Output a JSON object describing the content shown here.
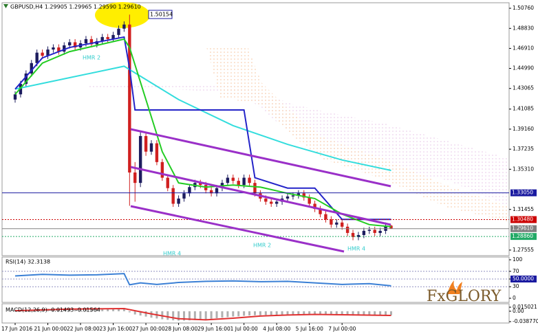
{
  "chart_data": [
    {
      "type": "candlestick",
      "title": "GBPUSD,H4  1.29905 1.29965 1.29590 1.29610",
      "categories": [
        "17 Jun 2016",
        null,
        null,
        null,
        null,
        null,
        "21 Jun 00:00",
        null,
        null,
        null,
        null,
        null,
        "22 Jun 08:00",
        null,
        null,
        null,
        null,
        null,
        "23 Jun 16:00",
        null,
        null,
        null,
        null,
        null,
        "27 Jun 00:00",
        null,
        null,
        null,
        null,
        null,
        "28 Jun 08:00",
        null,
        null,
        null,
        null,
        null,
        "29 Jun 16:00",
        null,
        null,
        null,
        null,
        null,
        "1 Jul 00:00",
        null,
        null,
        null,
        null,
        null,
        "4 Jul 08:00",
        null,
        null,
        null,
        null,
        null,
        "5 Jul 16:00",
        null,
        null,
        null,
        null,
        null,
        "7 Jul 00:00",
        null,
        null,
        null,
        null,
        null,
        null,
        null,
        null,
        null
      ],
      "open": [
        1.42,
        1.425,
        1.435,
        1.445,
        1.455,
        1.465,
        1.462,
        1.468,
        1.47,
        1.466,
        1.472,
        1.475,
        1.47,
        1.474,
        1.478,
        1.473,
        1.476,
        1.48,
        1.478,
        1.482,
        1.488,
        1.492,
        1.35,
        1.34,
        1.385,
        1.37,
        1.378,
        1.36,
        1.345,
        1.335,
        1.32,
        1.325,
        1.33,
        1.336,
        1.34,
        1.338,
        1.333,
        1.33,
        1.335,
        1.34,
        1.345,
        1.342,
        1.338,
        1.345,
        1.34,
        1.33,
        1.325,
        1.322,
        1.32,
        1.322,
        1.325,
        1.327,
        1.328,
        1.33,
        1.326,
        1.32,
        1.315,
        1.31,
        1.305,
        1.3,
        1.302,
        1.298,
        1.292,
        1.288,
        1.29,
        1.294,
        1.295,
        1.292,
        1.294,
        1.29905
      ],
      "high": [
        1.428,
        1.438,
        1.448,
        1.458,
        1.468,
        1.468,
        1.471,
        1.473,
        1.473,
        1.475,
        1.478,
        1.478,
        1.477,
        1.481,
        1.481,
        1.479,
        1.483,
        1.483,
        1.485,
        1.491,
        1.495,
        1.50154,
        1.36,
        1.39,
        1.388,
        1.381,
        1.381,
        1.363,
        1.348,
        1.338,
        1.328,
        1.333,
        1.339,
        1.343,
        1.343,
        1.341,
        1.336,
        1.338,
        1.343,
        1.348,
        1.348,
        1.345,
        1.348,
        1.348,
        1.343,
        1.333,
        1.328,
        1.325,
        1.325,
        1.328,
        1.33,
        1.331,
        1.333,
        1.333,
        1.329,
        1.323,
        1.318,
        1.313,
        1.308,
        1.305,
        1.305,
        1.301,
        1.295,
        1.293,
        1.297,
        1.298,
        1.298,
        1.297,
        1.302,
        1.29965
      ],
      "low": [
        1.417,
        1.422,
        1.432,
        1.442,
        1.452,
        1.459,
        1.459,
        1.465,
        1.463,
        1.463,
        1.469,
        1.467,
        1.467,
        1.471,
        1.47,
        1.47,
        1.473,
        1.475,
        1.475,
        1.479,
        1.485,
        1.318,
        1.322,
        1.336,
        1.366,
        1.367,
        1.357,
        1.342,
        1.332,
        1.317,
        1.317,
        1.322,
        1.327,
        1.333,
        1.335,
        1.33,
        1.327,
        1.327,
        1.332,
        1.337,
        1.339,
        1.335,
        1.335,
        1.337,
        1.327,
        1.322,
        1.319,
        1.317,
        1.317,
        1.319,
        1.322,
        1.324,
        1.325,
        1.323,
        1.317,
        1.312,
        1.307,
        1.302,
        1.297,
        1.297,
        1.295,
        1.289,
        1.285,
        1.285,
        1.287,
        1.291,
        1.289,
        1.289,
        1.291,
        1.2959
      ],
      "close": [
        1.425,
        1.435,
        1.445,
        1.455,
        1.465,
        1.462,
        1.468,
        1.47,
        1.466,
        1.472,
        1.475,
        1.47,
        1.474,
        1.478,
        1.473,
        1.476,
        1.48,
        1.478,
        1.482,
        1.488,
        1.492,
        1.35,
        1.34,
        1.385,
        1.37,
        1.378,
        1.36,
        1.345,
        1.335,
        1.32,
        1.325,
        1.33,
        1.336,
        1.34,
        1.338,
        1.333,
        1.33,
        1.335,
        1.34,
        1.345,
        1.342,
        1.338,
        1.345,
        1.34,
        1.33,
        1.325,
        1.322,
        1.32,
        1.322,
        1.325,
        1.327,
        1.328,
        1.33,
        1.326,
        1.32,
        1.315,
        1.31,
        1.305,
        1.3,
        1.302,
        1.298,
        1.292,
        1.288,
        1.29,
        1.294,
        1.295,
        1.292,
        1.294,
        1.299,
        1.2961
      ],
      "up_color": "#1c1c5e",
      "down_color": "#d02020",
      "series": [
        {
          "color": "#33dddd",
          "x": [
            0,
            10,
            20,
            30,
            40,
            50,
            60,
            69
          ],
          "values": [
            1.43,
            1.441,
            1.452,
            1.42,
            1.395,
            1.377,
            1.362,
            1.352
          ]
        },
        {
          "color": "#2323c8",
          "x": [
            0,
            5,
            10,
            20,
            21,
            22,
            42,
            44,
            50,
            55,
            60,
            69
          ],
          "values": [
            1.43,
            1.46,
            1.47,
            1.48,
            1.45,
            1.41,
            1.41,
            1.345,
            1.335,
            1.335,
            1.305,
            1.305
          ]
        },
        {
          "color": "#22cc22",
          "x": [
            0,
            5,
            10,
            15,
            20,
            21,
            24,
            27,
            30,
            35,
            40,
            45,
            50,
            55,
            60,
            65,
            69
          ],
          "values": [
            1.425,
            1.455,
            1.466,
            1.472,
            1.478,
            1.47,
            1.42,
            1.37,
            1.34,
            1.336,
            1.338,
            1.336,
            1.33,
            1.325,
            1.31,
            1.3,
            1.298
          ]
        }
      ],
      "hlines": [
        {
          "value": 1.3305,
          "label": "1.33050",
          "color": "#1a1aa0",
          "style": "solid"
        },
        {
          "value": 1.3048,
          "label": "1.30480",
          "color": "#cc0000",
          "style": "dotted"
        },
        {
          "value": 1.2961,
          "label": "1.29610",
          "color": "#808080",
          "style": "solid"
        },
        {
          "value": 1.2886,
          "label": "1.28860",
          "color": "#22aa66",
          "style": "dotted"
        }
      ],
      "annotations": [
        "1.50154",
        "HMR 2",
        "HMR 4",
        "HMR 2",
        "HMR 4"
      ],
      "ylim": [
        1.2702,
        1.5129
      ],
      "yticks": [
        {
          "value": 1.5076,
          "label": "1.50760"
        },
        {
          "value": 1.4883,
          "label": "1.48830"
        },
        {
          "value": 1.4691,
          "label": "1.46910"
        },
        {
          "value": 1.4499,
          "label": "1.44990"
        },
        {
          "value": 1.43065,
          "label": "1.43065"
        },
        {
          "value": 1.41085,
          "label": "1.41085"
        },
        {
          "value": 1.3916,
          "label": "1.39160"
        },
        {
          "value": 1.37235,
          "label": "1.37235"
        },
        {
          "value": 1.3531,
          "label": "1.35310"
        },
        {
          "value": 1.31455,
          "label": "1.31455"
        },
        {
          "value": 1.27555,
          "label": "1.27555"
        }
      ]
    },
    {
      "type": "line",
      "title": "RSI(14) 32.3138",
      "series": [
        {
          "color": "#3a7fd5",
          "x": [
            0,
            5,
            10,
            15,
            20,
            21,
            23,
            26,
            30,
            35,
            40,
            45,
            50,
            55,
            60,
            65,
            69
          ],
          "values": [
            58,
            62,
            60,
            61,
            64,
            35,
            40,
            36,
            41,
            44,
            45,
            43,
            44,
            40,
            36,
            38,
            32.3138
          ]
        }
      ],
      "ylim": [
        0,
        100
      ],
      "yticks": [
        100,
        70,
        {
          "value": 50,
          "label": "50.0000"
        },
        30,
        0
      ]
    },
    {
      "type": "bar",
      "title": "MACD(12,26,9) -0.01493 -0.01564",
      "color": "#b0b0b0",
      "values": [
        0.002,
        0.003,
        0.004,
        0.005,
        0.007,
        0.008,
        0.009,
        0.009,
        0.009,
        0.01,
        0.01,
        0.01,
        0.01,
        0.01,
        0.01,
        0.01,
        0.01,
        0.01,
        0.011,
        0.011,
        0.012,
        -0.004,
        -0.012,
        -0.016,
        -0.02,
        -0.024,
        -0.027,
        -0.03,
        -0.032,
        -0.034,
        -0.035,
        -0.035,
        -0.034,
        -0.033,
        -0.031,
        -0.03,
        -0.028,
        -0.026,
        -0.024,
        -0.022,
        -0.02,
        -0.019,
        -0.017,
        -0.016,
        -0.015,
        -0.015,
        -0.014,
        -0.014,
        -0.013,
        -0.013,
        -0.012,
        -0.012,
        -0.012,
        -0.012,
        -0.012,
        -0.013,
        -0.013,
        -0.014,
        -0.014,
        -0.015,
        -0.015,
        -0.015,
        -0.016,
        -0.016,
        -0.016,
        -0.016,
        -0.015,
        -0.015,
        -0.015,
        -0.01493
      ],
      "series": [
        {
          "color": "#e03030",
          "x": [
            0,
            10,
            20,
            25,
            30,
            35,
            40,
            45,
            50,
            55,
            60,
            69
          ],
          "values": [
            0.002,
            0.008,
            0.01,
            -0.01,
            -0.028,
            -0.032,
            -0.026,
            -0.018,
            -0.014,
            -0.012,
            -0.013,
            -0.01564
          ]
        }
      ],
      "ylim": [
        -0.03877,
        0.015021
      ],
      "yticks": [
        {
          "value": 0.015021,
          "label": "0.015021"
        },
        {
          "value": 0,
          "label": "0.00"
        },
        {
          "value": -0.03877,
          "label": "-0.038770"
        }
      ]
    }
  ],
  "logo": "FxGLORY"
}
